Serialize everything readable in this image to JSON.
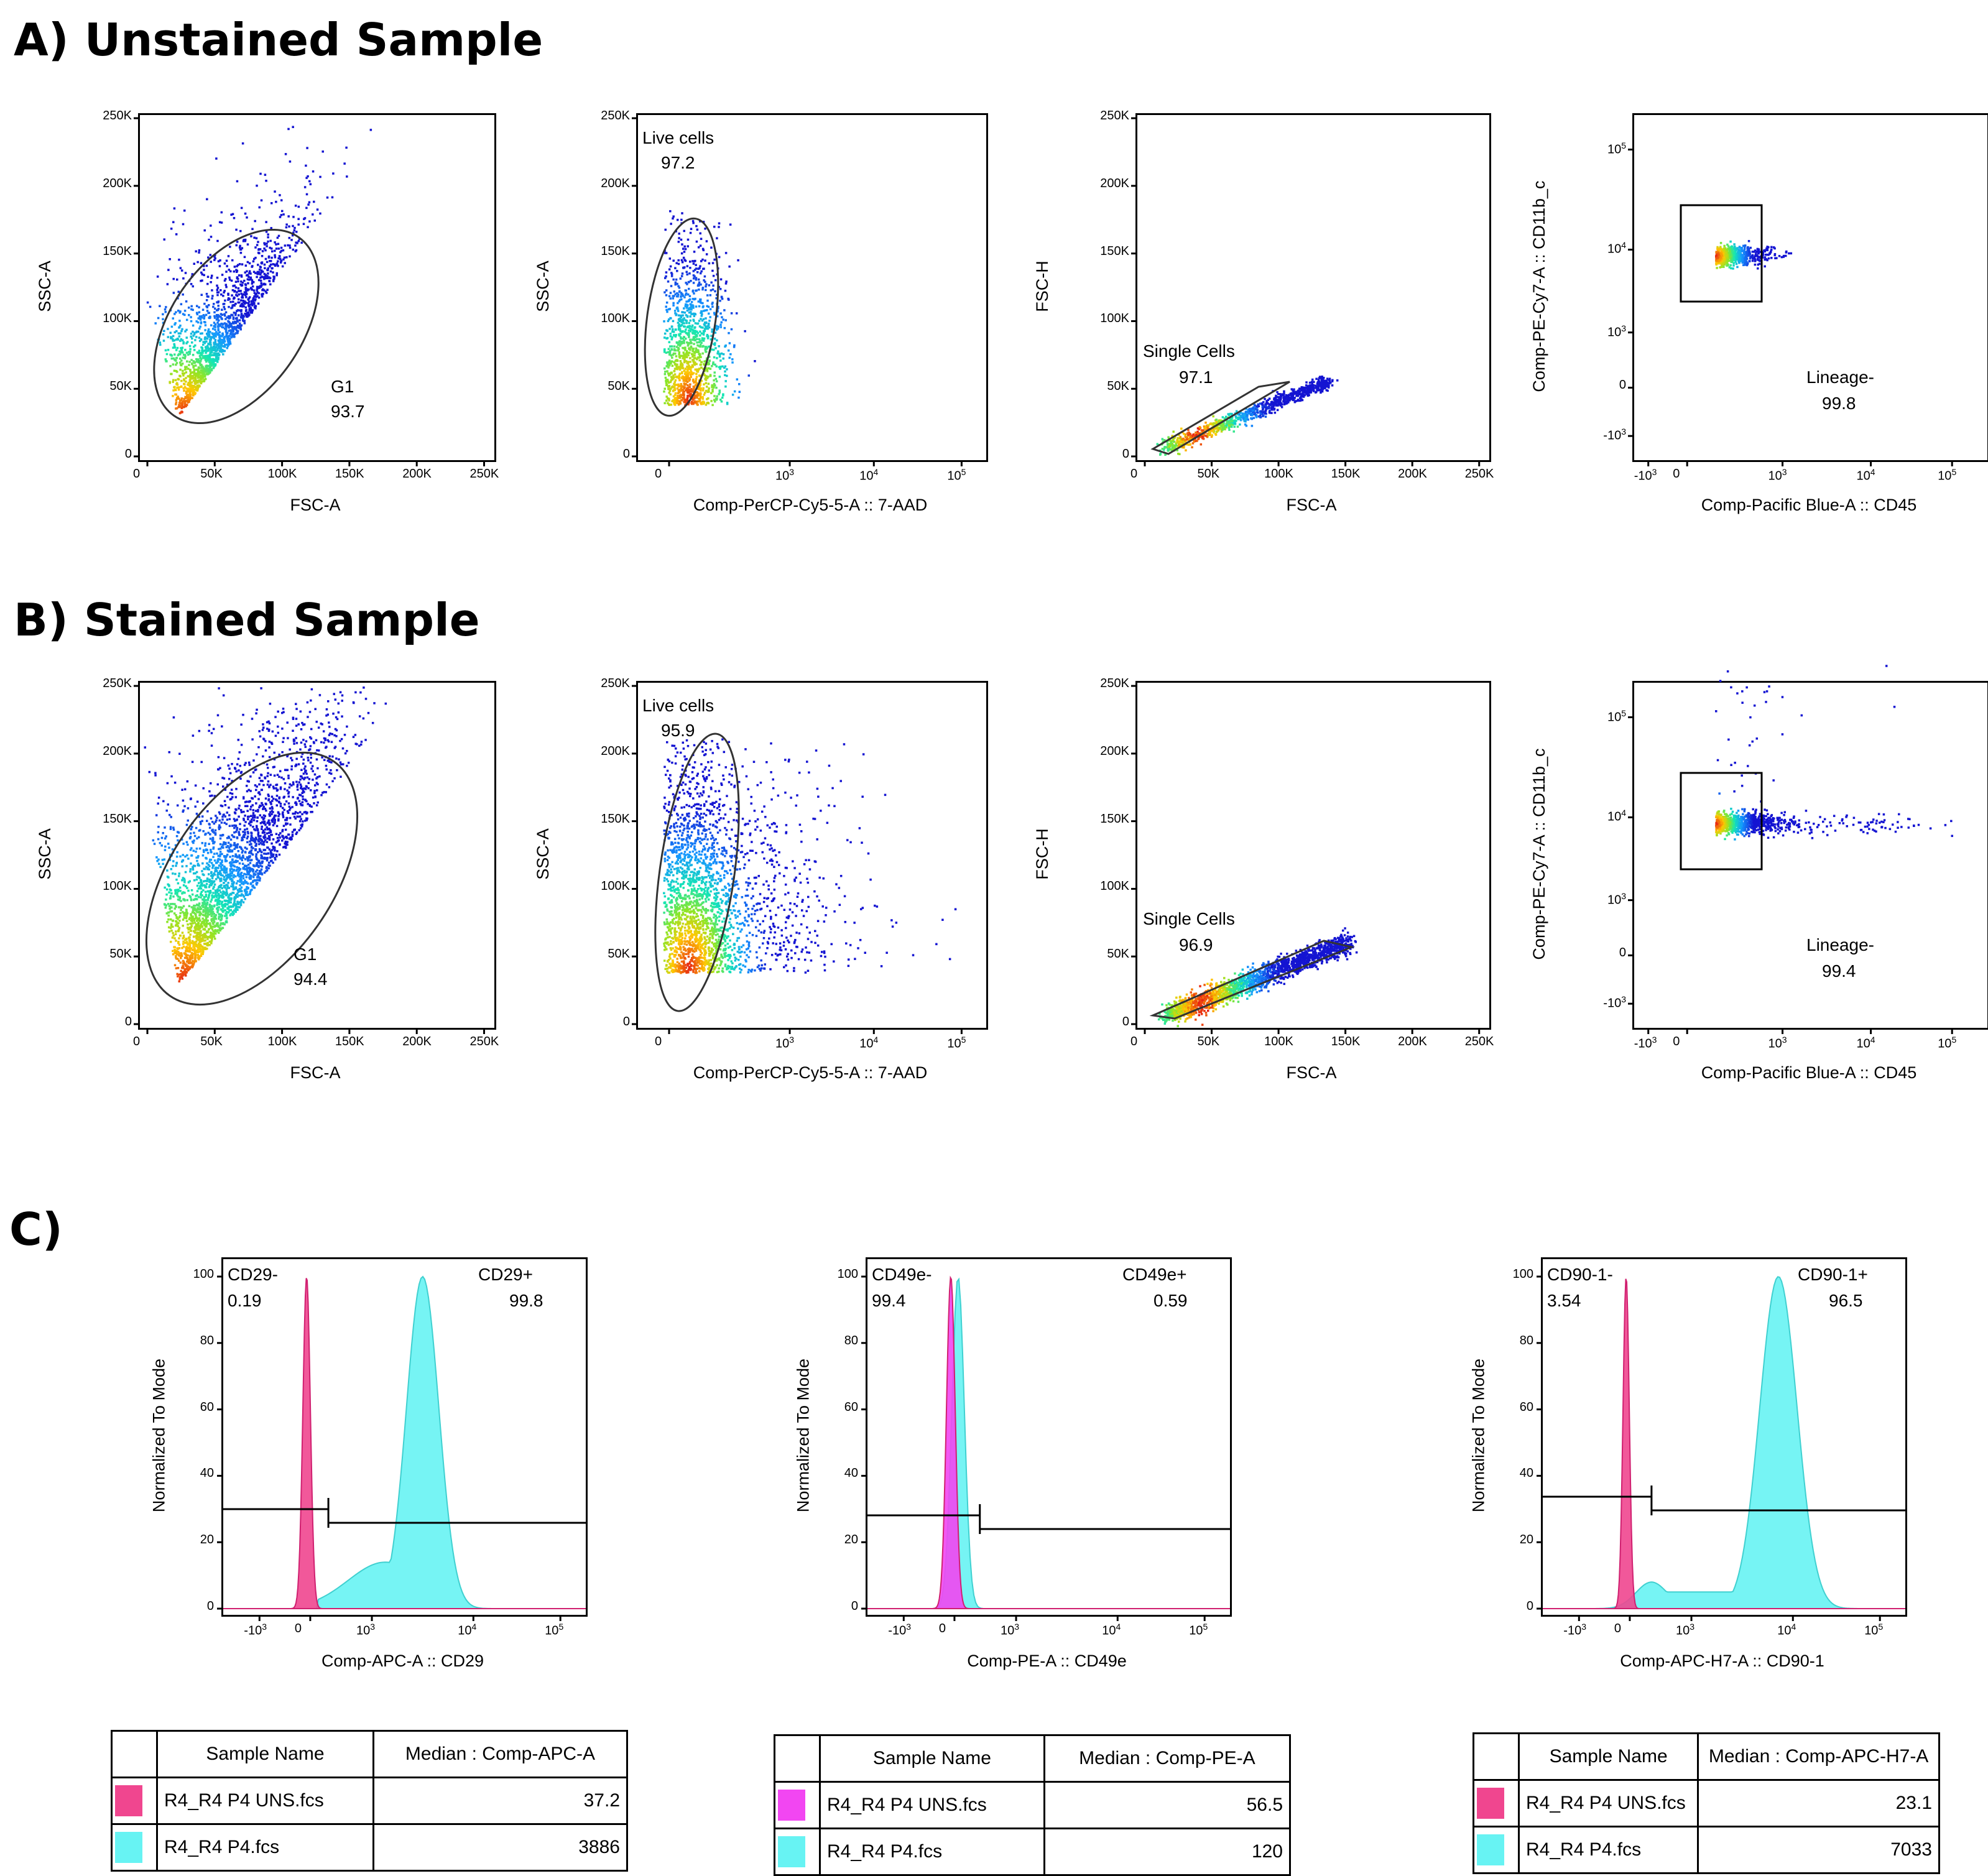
{
  "sections": {
    "a": "A) Unstained Sample",
    "b": "B) Stained Sample",
    "c": "C)"
  },
  "colors": {
    "unstained": "#f0468f",
    "stained": "#67f3f3",
    "unstained_pe": "#f246f2",
    "unstained_apch7": "#f0468f"
  },
  "chart_data": [
    {
      "type": "scatter",
      "row": "A",
      "panel": "scatter-fsc-ssc",
      "xlabel": "FSC-A",
      "ylabel": "SSC-A",
      "xlim": [
        0,
        262144
      ],
      "ylim": [
        0,
        262144
      ],
      "xticks": [
        "0",
        "50K",
        "100K",
        "150K",
        "200K",
        "250K"
      ],
      "yticks": [
        "0",
        "50K",
        "100K",
        "150K",
        "200K",
        "250K"
      ],
      "gate": {
        "name": "G1",
        "percent": "93.7",
        "shape": "ellipse"
      },
      "density": {
        "center": [
          30000,
          40000
        ],
        "spread": "moderate"
      }
    },
    {
      "type": "scatter",
      "row": "A",
      "panel": "scatter-7aad-ssc",
      "xlabel": "Comp-PerCP-Cy5-5-A :: 7-AAD",
      "ylabel": "SSC-A",
      "xscale": "biexponential",
      "ylim": [
        0,
        262144
      ],
      "xticks": [
        "0",
        "10^3",
        "10^4",
        "10^5"
      ],
      "yticks": [
        "0",
        "50K",
        "100K",
        "150K",
        "200K",
        "250K"
      ],
      "gate": {
        "name": "Live cells",
        "percent": "97.2",
        "shape": "ellipse"
      }
    },
    {
      "type": "scatter",
      "row": "A",
      "panel": "scatter-fsc-fsch",
      "xlabel": "FSC-A",
      "ylabel": "FSC-H",
      "xlim": [
        0,
        262144
      ],
      "ylim": [
        0,
        262144
      ],
      "xticks": [
        "0",
        "50K",
        "100K",
        "150K",
        "200K",
        "250K"
      ],
      "yticks": [
        "0",
        "50K",
        "100K",
        "150K",
        "200K",
        "250K"
      ],
      "gate": {
        "name": "Single Cells",
        "percent": "97.1",
        "shape": "polygon"
      }
    },
    {
      "type": "scatter",
      "row": "A",
      "panel": "scatter-cd45-cd11b",
      "xlabel": "Comp-Pacific Blue-A :: CD45",
      "ylabel": "Comp-PE-Cy7-A :: CD11b_c",
      "xscale": "biexponential",
      "yscale": "biexponential",
      "xticks": [
        "-10^3",
        "0",
        "10^3",
        "10^4",
        "10^5"
      ],
      "yticks": [
        "-10^3",
        "0",
        "10^3",
        "10^4",
        "10^5"
      ],
      "gate": {
        "name": "Lineage-",
        "percent": "99.8",
        "shape": "rectangle"
      }
    },
    {
      "type": "scatter",
      "row": "B",
      "panel": "scatter-fsc-ssc",
      "xlabel": "FSC-A",
      "ylabel": "SSC-A",
      "xlim": [
        0,
        262144
      ],
      "ylim": [
        0,
        262144
      ],
      "xticks": [
        "0",
        "50K",
        "100K",
        "150K",
        "200K",
        "250K"
      ],
      "yticks": [
        "0",
        "50K",
        "100K",
        "150K",
        "200K",
        "250K"
      ],
      "gate": {
        "name": "G1",
        "percent": "94.4",
        "shape": "ellipse"
      }
    },
    {
      "type": "scatter",
      "row": "B",
      "panel": "scatter-7aad-ssc",
      "xlabel": "Comp-PerCP-Cy5-5-A :: 7-AAD",
      "ylabel": "SSC-A",
      "xscale": "biexponential",
      "ylim": [
        0,
        262144
      ],
      "xticks": [
        "0",
        "10^3",
        "10^4",
        "10^5"
      ],
      "yticks": [
        "0",
        "50K",
        "100K",
        "150K",
        "200K",
        "250K"
      ],
      "gate": {
        "name": "Live cells",
        "percent": "95.9",
        "shape": "ellipse"
      }
    },
    {
      "type": "scatter",
      "row": "B",
      "panel": "scatter-fsc-fsch",
      "xlabel": "FSC-A",
      "ylabel": "FSC-H",
      "xlim": [
        0,
        262144
      ],
      "ylim": [
        0,
        262144
      ],
      "xticks": [
        "0",
        "50K",
        "100K",
        "150K",
        "200K",
        "250K"
      ],
      "yticks": [
        "0",
        "50K",
        "100K",
        "150K",
        "200K",
        "250K"
      ],
      "gate": {
        "name": "Single Cells",
        "percent": "96.9",
        "shape": "polygon"
      }
    },
    {
      "type": "scatter",
      "row": "B",
      "panel": "scatter-cd45-cd11b",
      "xlabel": "Comp-Pacific Blue-A :: CD45",
      "ylabel": "Comp-PE-Cy7-A :: CD11b_c",
      "xscale": "biexponential",
      "yscale": "biexponential",
      "xticks": [
        "-10^3",
        "0",
        "10^3",
        "10^4",
        "10^5"
      ],
      "yticks": [
        "-10^3",
        "0",
        "10^3",
        "10^4",
        "10^5"
      ],
      "gate": {
        "name": "Lineage-",
        "percent": "99.4",
        "shape": "rectangle"
      }
    },
    {
      "type": "area",
      "row": "C",
      "panel": "histogram-cd29",
      "xlabel": "Comp-APC-A :: CD29",
      "ylabel": "Normalized To Mode",
      "ylim": [
        0,
        100
      ],
      "xscale": "biexponential",
      "xticks": [
        "-10^3",
        "0",
        "10^3",
        "10^4",
        "10^5"
      ],
      "yticks": [
        "0",
        "20",
        "40",
        "60",
        "80",
        "100"
      ],
      "gates": [
        {
          "name": "CD29-",
          "percent": "0.19"
        },
        {
          "name": "CD29+",
          "percent": "99.8"
        }
      ],
      "series": [
        {
          "name": "R4_R4 P4 UNS.fcs",
          "peak": 100,
          "median": "37.2"
        },
        {
          "name": "R4_R4 P4.fcs",
          "peak": 100,
          "median": "3886"
        }
      ],
      "table": {
        "headers": [
          "Sample Name",
          "Median : Comp-APC-A"
        ],
        "rows": [
          [
            "R4_R4 P4 UNS.fcs",
            "37.2"
          ],
          [
            "R4_R4 P4.fcs",
            "3886"
          ]
        ]
      }
    },
    {
      "type": "area",
      "row": "C",
      "panel": "histogram-cd49e",
      "xlabel": "Comp-PE-A :: CD49e",
      "ylabel": "Normalized To Mode",
      "ylim": [
        0,
        100
      ],
      "xscale": "biexponential",
      "xticks": [
        "-10^3",
        "0",
        "10^3",
        "10^4",
        "10^5"
      ],
      "yticks": [
        "0",
        "20",
        "40",
        "60",
        "80",
        "100"
      ],
      "gates": [
        {
          "name": "CD49e-",
          "percent": "99.4"
        },
        {
          "name": "CD49e+",
          "percent": "0.59"
        }
      ],
      "series": [
        {
          "name": "R4_R4 P4 UNS.fcs",
          "peak": 100,
          "median": "56.5"
        },
        {
          "name": "R4_R4 P4.fcs",
          "peak": 100,
          "median": "120"
        }
      ],
      "table": {
        "headers": [
          "Sample Name",
          "Median : Comp-PE-A"
        ],
        "rows": [
          [
            "R4_R4 P4 UNS.fcs",
            "56.5"
          ],
          [
            "R4_R4 P4.fcs",
            "120"
          ]
        ]
      }
    },
    {
      "type": "area",
      "row": "C",
      "panel": "histogram-cd90",
      "xlabel": "Comp-APC-H7-A :: CD90-1",
      "ylabel": "Normalized To Mode",
      "ylim": [
        0,
        100
      ],
      "xscale": "biexponential",
      "xticks": [
        "-10^3",
        "0",
        "10^3",
        "10^4",
        "10^5"
      ],
      "yticks": [
        "0",
        "20",
        "40",
        "60",
        "80",
        "100"
      ],
      "gates": [
        {
          "name": "CD90-1-",
          "percent": "3.54"
        },
        {
          "name": "CD90-1+",
          "percent": "96.5"
        }
      ],
      "series": [
        {
          "name": "R4_R4 P4 UNS.fcs",
          "peak": 100,
          "median": "23.1"
        },
        {
          "name": "R4_R4 P4.fcs",
          "peak": 100,
          "median": "7033"
        }
      ],
      "table": {
        "headers": [
          "Sample Name",
          "Median : Comp-APC-H7-A"
        ],
        "rows": [
          [
            "R4_R4 P4 UNS.fcs",
            "23.1"
          ],
          [
            "R4_R4 P4.fcs",
            "7033"
          ]
        ]
      }
    }
  ]
}
